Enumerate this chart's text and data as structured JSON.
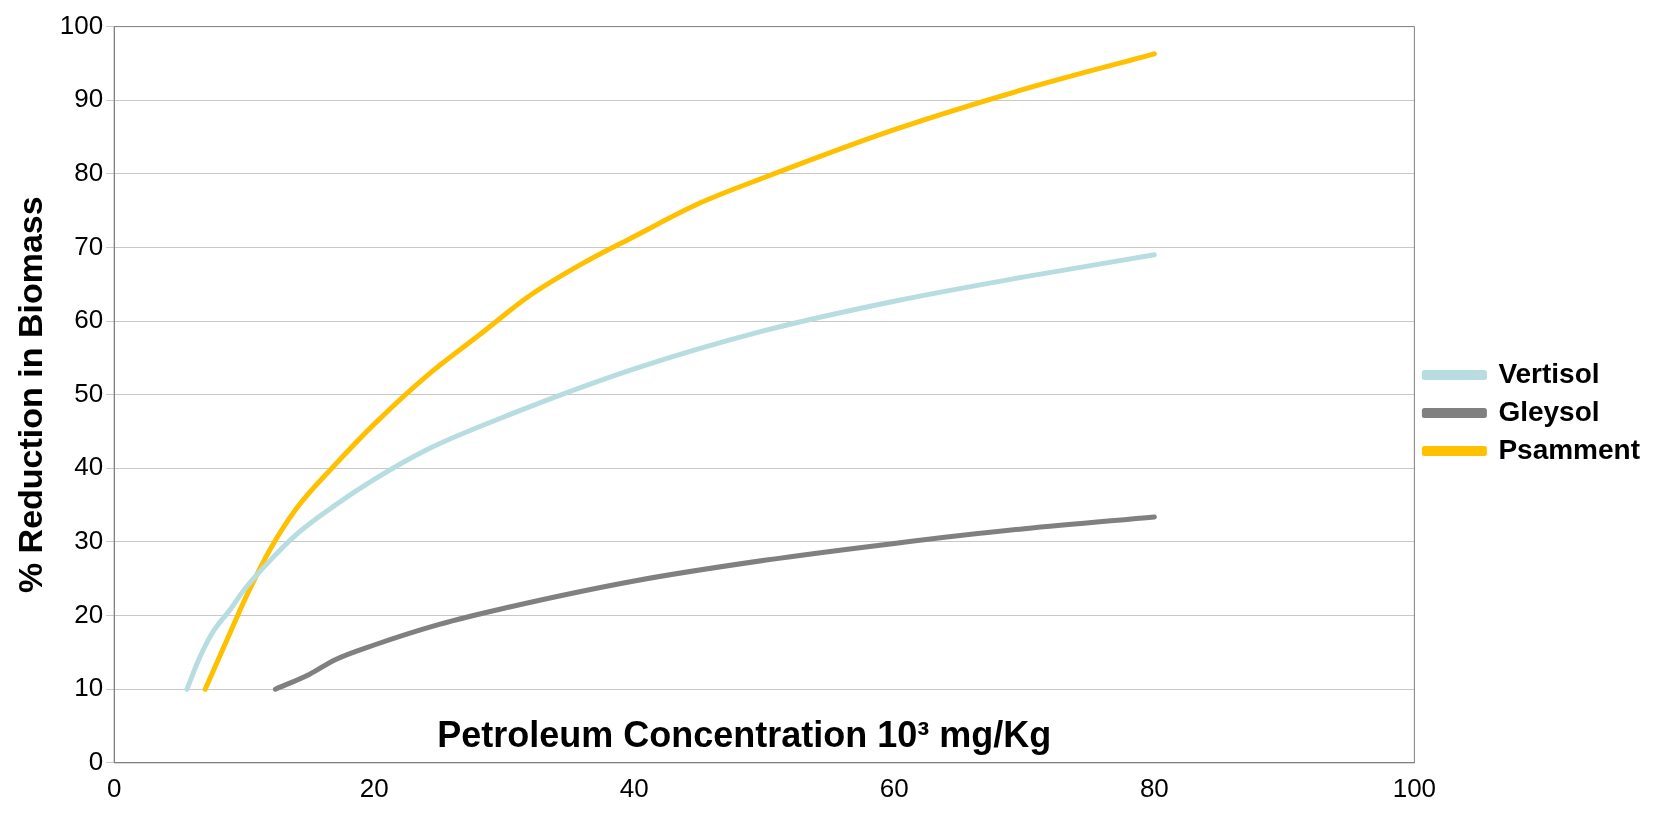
{
  "chart_data": {
    "type": "line",
    "xlabel": "Petroleum Concentration 10³ mg/Kg",
    "ylabel": "% Reduction in Biomass",
    "xlim": [
      0,
      100
    ],
    "xticks": [
      0,
      20,
      40,
      60,
      80,
      100
    ],
    "ylim": [
      0,
      100
    ],
    "yticks": [
      0,
      10,
      20,
      30,
      40,
      50,
      60,
      70,
      80,
      90,
      100
    ],
    "grid": "y",
    "legend": "right",
    "marker": "none",
    "line_style": "solid",
    "series": [
      {
        "name": "Vertisol",
        "color": "#b7dde0",
        "x": [
          5.6,
          6.5,
          7.5,
          9,
          10,
          12,
          14,
          17,
          20,
          24,
          30,
          40,
          50,
          60,
          70,
          80
        ],
        "values": [
          10,
          14,
          17.5,
          21,
          23.5,
          27.5,
          31,
          35,
          38.5,
          42.5,
          47,
          53.5,
          58.7,
          62.7,
          66,
          69
        ]
      },
      {
        "name": "Gleysol",
        "color": "#808080",
        "x": [
          12.4,
          15,
          17,
          20,
          25,
          30,
          40,
          50,
          60,
          70,
          80
        ],
        "values": [
          10,
          12,
          14,
          16,
          18.8,
          21,
          24.7,
          27.5,
          29.8,
          31.8,
          33.4
        ]
      },
      {
        "name": "Psamment",
        "color": "#ffc000",
        "x": [
          7,
          9,
          10,
          12,
          14,
          17,
          20,
          24,
          28,
          32,
          36,
          40,
          45,
          50,
          60,
          70,
          80
        ],
        "values": [
          10,
          18,
          22,
          29,
          34.5,
          40.5,
          46,
          52.5,
          58,
          63.5,
          67.8,
          71.5,
          76,
          79.5,
          86,
          91.5,
          96.3
        ]
      }
    ]
  }
}
